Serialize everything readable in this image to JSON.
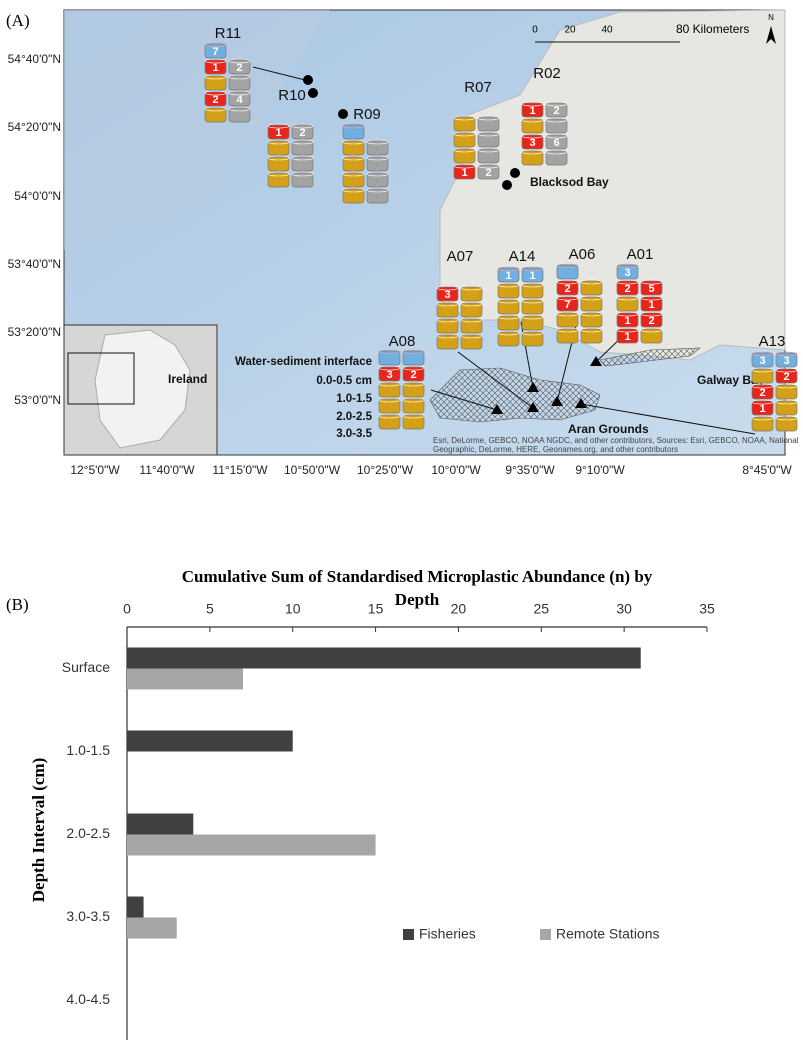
{
  "panel_a": {
    "label": "(A)",
    "lat_labels": [
      "54°40'0\"N",
      "54°20'0\"N",
      "54°0'0\"N",
      "53°40'0\"N",
      "53°20'0\"N",
      "53°0'0\"N"
    ],
    "lon_labels": [
      "12°5'0\"W",
      "11°40'0\"W",
      "11°15'0\"W",
      "10°50'0\"W",
      "10°25'0\"W",
      "10°0'0\"W",
      "9°35'0\"W",
      "9°10'0\"W",
      "8°45'0\"W"
    ],
    "scale_labels": [
      "0",
      "20",
      "40",
      "80 Kilometers"
    ],
    "north": "N",
    "places": [
      "Blacksod Bay",
      "Galway Bay",
      "Aran Grounds",
      "Ireland"
    ],
    "legend": {
      "title": "Water-sediment interface",
      "layers": [
        "0.0-0.5 cm",
        "1.0-1.5",
        "2.0-2.5",
        "3.0-3.5"
      ]
    },
    "attribution": [
      "Esri, DeLorme, GEBCO, NOAA NGDC, and other contributors, Sources: Esri, GEBCO, NOAA, National",
      "Geographic, DeLorme, HERE, Geonames.org, and other contributors"
    ],
    "stations": [
      {
        "name": "R11",
        "columns": [
          [
            "7",
            "1",
            null,
            "2",
            null
          ],
          [
            null,
            "2",
            null,
            "4",
            null
          ]
        ]
      },
      {
        "name": "R10",
        "columns": [
          [
            null,
            "1",
            null,
            null,
            null
          ],
          [
            null,
            "2",
            null,
            null,
            null
          ]
        ]
      },
      {
        "name": "R09",
        "columns": [
          [
            null,
            null,
            null,
            null,
            null
          ],
          [
            null,
            null,
            null,
            null,
            null
          ]
        ]
      },
      {
        "name": "R07",
        "columns": [
          [
            null,
            null,
            null,
            null,
            "1"
          ],
          [
            null,
            null,
            null,
            null,
            "2"
          ]
        ]
      },
      {
        "name": "R02",
        "columns": [
          [
            null,
            "1",
            null,
            "3",
            null
          ],
          [
            null,
            "2",
            null,
            "6",
            null
          ]
        ]
      },
      {
        "name": "A07",
        "columns": [
          [
            null,
            "3",
            null,
            null,
            null
          ],
          [
            null,
            null,
            null,
            null,
            null
          ]
        ]
      },
      {
        "name": "A14",
        "columns": [
          [
            "1",
            null,
            null,
            null,
            null
          ],
          [
            "1",
            null,
            null,
            null,
            null
          ]
        ]
      },
      {
        "name": "A06",
        "columns": [
          [
            null,
            "2",
            "7",
            null,
            null
          ],
          [
            null,
            null,
            null,
            null,
            null
          ]
        ]
      },
      {
        "name": "A01",
        "columns": [
          [
            "3",
            "2",
            null,
            "1",
            "1"
          ],
          [
            null,
            "5",
            "1",
            "2",
            null
          ]
        ]
      },
      {
        "name": "A08",
        "columns": [
          [
            null,
            "3",
            null,
            null,
            null
          ],
          [
            null,
            "2",
            null,
            null,
            null
          ]
        ]
      },
      {
        "name": "A13",
        "columns": [
          [
            "3",
            null,
            "2",
            "1",
            null
          ],
          [
            "3",
            "2",
            null,
            null,
            null
          ]
        ]
      }
    ]
  },
  "panel_b": {
    "label": "(B)"
  },
  "chart_data": {
    "type": "barh",
    "title": "Cumulative Sum of Standardised Microplastic Abundance (n) by Depth",
    "y_label": "Depth Interval (cm)",
    "categories": [
      "Surface",
      "1.0-1.5",
      "2.0-2.5",
      "3.0-3.5",
      "4.0-4.5"
    ],
    "series": [
      {
        "name": "Fisheries",
        "color": "#404040",
        "values": [
          31,
          10,
          4,
          1,
          0
        ]
      },
      {
        "name": "Remote Stations",
        "color": "#a6a6a6",
        "values": [
          7,
          0,
          15,
          3,
          0
        ]
      }
    ],
    "xlim": [
      0,
      35
    ],
    "xticks": [
      0,
      5,
      10,
      15,
      20,
      25,
      30,
      35
    ],
    "grid": false,
    "legend": "bottom-right"
  }
}
